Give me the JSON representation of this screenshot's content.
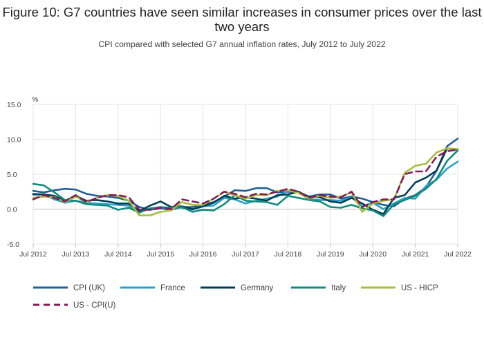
{
  "chart_data": {
    "type": "line",
    "title": "Figure 10: G7 countries have seen similar increases in consumer prices over the last two years",
    "subtitle": "CPI compared with selected G7 annual inflation rates, July 2012 to July 2022",
    "ylabel": "%",
    "xlabel": "",
    "ylim": [
      -5,
      15
    ],
    "yticks": [
      -5,
      0,
      5,
      10,
      15
    ],
    "ytick_labels": [
      "-5.0",
      "0.0",
      "5.0",
      "10.0",
      "15.0"
    ],
    "xlim": [
      2012.5,
      2022.5
    ],
    "xticks": [
      2012.5,
      2013.5,
      2014.5,
      2015.5,
      2016.5,
      2017.5,
      2018.5,
      2019.5,
      2020.5,
      2021.5,
      2022.5
    ],
    "xtick_labels": [
      "Jul 2012",
      "Jul 2013",
      "Jul 2014",
      "Jul 2015",
      "Jul 2016",
      "Jul 2017",
      "Jul 2018",
      "Jul 2019",
      "Jul 2020",
      "Jul 2021",
      "Jul 2022"
    ],
    "grid": true,
    "legend_position": "bottom",
    "series": [
      {
        "name": "CPI (UK)",
        "color": "#206095",
        "dash": "solid",
        "x": [
          2012.5,
          2012.75,
          2013.0,
          2013.25,
          2013.5,
          2013.75,
          2014.0,
          2014.25,
          2014.5,
          2014.75,
          2015.0,
          2015.25,
          2015.5,
          2015.75,
          2016.0,
          2016.25,
          2016.5,
          2016.75,
          2017.0,
          2017.25,
          2017.5,
          2017.75,
          2018.0,
          2018.25,
          2018.5,
          2018.75,
          2019.0,
          2019.25,
          2019.5,
          2019.75,
          2020.0,
          2020.25,
          2020.5,
          2020.75,
          2021.0,
          2021.25,
          2021.5,
          2021.75,
          2022.0,
          2022.25,
          2022.5
        ],
        "y": [
          2.6,
          2.4,
          2.7,
          2.9,
          2.8,
          2.2,
          1.9,
          1.8,
          1.6,
          1.2,
          0.3,
          -0.1,
          0.1,
          -0.1,
          0.3,
          0.3,
          0.6,
          1.0,
          1.8,
          2.7,
          2.6,
          3.0,
          3.0,
          2.4,
          2.5,
          2.4,
          1.8,
          2.1,
          2.1,
          1.5,
          1.8,
          1.5,
          1.0,
          0.6,
          0.4,
          1.5,
          2.0,
          3.1,
          5.5,
          9.0,
          10.1
        ]
      },
      {
        "name": "France",
        "color": "#27a0cc",
        "dash": "solid",
        "x": [
          2012.5,
          2012.75,
          2013.0,
          2013.25,
          2013.5,
          2013.75,
          2014.0,
          2014.25,
          2014.5,
          2014.75,
          2015.0,
          2015.25,
          2015.5,
          2015.75,
          2016.0,
          2016.25,
          2016.5,
          2016.75,
          2017.0,
          2017.25,
          2017.5,
          2017.75,
          2018.0,
          2018.25,
          2018.5,
          2018.75,
          2019.0,
          2019.25,
          2019.5,
          2019.75,
          2020.0,
          2020.25,
          2020.5,
          2020.75,
          2021.0,
          2021.25,
          2021.5,
          2021.75,
          2022.0,
          2022.25,
          2022.5
        ],
        "y": [
          2.2,
          2.1,
          1.4,
          0.9,
          1.2,
          0.9,
          0.8,
          0.7,
          0.6,
          0.5,
          -0.4,
          0.1,
          0.2,
          0.2,
          0.2,
          -0.1,
          0.4,
          0.5,
          1.6,
          1.4,
          0.8,
          1.2,
          1.5,
          1.8,
          2.6,
          2.5,
          1.4,
          1.3,
          1.3,
          1.2,
          1.7,
          0.4,
          0.9,
          0.0,
          0.8,
          1.6,
          1.5,
          3.3,
          4.2,
          5.8,
          6.8
        ]
      },
      {
        "name": "Germany",
        "color": "#003c57",
        "dash": "solid",
        "x": [
          2012.5,
          2012.75,
          2013.0,
          2013.25,
          2013.5,
          2013.75,
          2014.0,
          2014.25,
          2014.5,
          2014.75,
          2015.0,
          2015.25,
          2015.5,
          2015.75,
          2016.0,
          2016.25,
          2016.5,
          2016.75,
          2017.0,
          2017.25,
          2017.5,
          2017.75,
          2018.0,
          2018.25,
          2018.5,
          2018.75,
          2019.0,
          2019.25,
          2019.5,
          2019.75,
          2020.0,
          2020.25,
          2020.5,
          2020.75,
          2021.0,
          2021.25,
          2021.5,
          2021.75,
          2022.0,
          2022.25,
          2022.5
        ],
        "y": [
          2.1,
          2.1,
          1.9,
          1.2,
          1.9,
          1.2,
          1.3,
          1.1,
          0.8,
          0.8,
          -0.3,
          0.5,
          1.1,
          0.3,
          0.4,
          0.0,
          0.4,
          0.9,
          1.9,
          1.5,
          1.7,
          1.5,
          1.2,
          2.0,
          2.1,
          2.5,
          1.7,
          1.7,
          1.1,
          0.9,
          1.6,
          0.8,
          -0.1,
          -0.7,
          1.6,
          2.0,
          3.8,
          4.5,
          5.5,
          8.7,
          8.5
        ]
      },
      {
        "name": "Italy",
        "color": "#118c7b",
        "dash": "solid",
        "x": [
          2012.5,
          2012.75,
          2013.0,
          2013.25,
          2013.5,
          2013.75,
          2014.0,
          2014.25,
          2014.5,
          2014.75,
          2015.0,
          2015.25,
          2015.5,
          2015.75,
          2016.0,
          2016.25,
          2016.5,
          2016.75,
          2017.0,
          2017.25,
          2017.5,
          2017.75,
          2018.0,
          2018.25,
          2018.5,
          2018.75,
          2019.0,
          2019.25,
          2019.5,
          2019.75,
          2020.0,
          2020.25,
          2020.5,
          2020.75,
          2021.0,
          2021.25,
          2021.5,
          2021.75,
          2022.0,
          2022.25,
          2022.5
        ],
        "y": [
          3.6,
          3.4,
          2.4,
          1.3,
          1.2,
          0.7,
          0.6,
          0.5,
          -0.1,
          0.2,
          -0.5,
          0.1,
          0.3,
          0.2,
          0.3,
          -0.4,
          -0.1,
          -0.2,
          0.7,
          2.0,
          1.2,
          1.1,
          1.0,
          0.6,
          1.9,
          1.6,
          1.3,
          1.1,
          0.3,
          0.2,
          0.6,
          0.1,
          -0.2,
          -1.0,
          0.7,
          1.3,
          1.9,
          2.9,
          4.3,
          6.9,
          8.4
        ]
      },
      {
        "name": "US - HICP",
        "color": "#a8bd3a",
        "dash": "solid",
        "x": [
          2012.5,
          2012.75,
          2013.0,
          2013.25,
          2013.5,
          2013.75,
          2014.0,
          2014.25,
          2014.5,
          2014.75,
          2015.0,
          2015.25,
          2015.5,
          2015.75,
          2016.0,
          2016.25,
          2016.5,
          2016.75,
          2017.0,
          2017.25,
          2017.5,
          2017.75,
          2018.0,
          2018.25,
          2018.5,
          2018.75,
          2019.0,
          2019.25,
          2019.5,
          2019.75,
          2020.0,
          2020.25,
          2020.5,
          2020.75,
          2021.0,
          2021.25,
          2021.5,
          2021.75,
          2022.0,
          2022.25,
          2022.5
        ],
        "y": [
          1.6,
          1.8,
          1.7,
          1.0,
          1.8,
          1.0,
          1.6,
          2.0,
          1.9,
          1.2,
          -0.9,
          -0.9,
          -0.4,
          -0.2,
          1.0,
          0.6,
          0.6,
          1.5,
          2.5,
          2.0,
          1.5,
          2.0,
          2.0,
          2.6,
          2.7,
          2.3,
          1.5,
          1.9,
          1.6,
          1.8,
          2.4,
          -0.4,
          0.8,
          1.2,
          1.4,
          5.2,
          6.2,
          6.5,
          8.1,
          8.7,
          8.6
        ]
      },
      {
        "name": "US - CPI(U)",
        "color": "#871a5b",
        "dash": "dashed",
        "x": [
          2012.5,
          2012.75,
          2013.0,
          2013.25,
          2013.5,
          2013.75,
          2014.0,
          2014.25,
          2014.5,
          2014.75,
          2015.0,
          2015.25,
          2015.5,
          2015.75,
          2016.0,
          2016.25,
          2016.5,
          2016.75,
          2017.0,
          2017.25,
          2017.5,
          2017.75,
          2018.0,
          2018.25,
          2018.5,
          2018.75,
          2019.0,
          2019.25,
          2019.5,
          2019.75,
          2020.0,
          2020.25,
          2020.5,
          2020.75,
          2021.0,
          2021.25,
          2021.5,
          2021.75,
          2022.0,
          2022.25,
          2022.5
        ],
        "y": [
          1.4,
          2.0,
          1.6,
          1.1,
          2.0,
          1.0,
          1.6,
          2.0,
          2.0,
          1.7,
          -0.1,
          -0.1,
          0.2,
          0.0,
          1.4,
          1.1,
          0.8,
          1.5,
          2.5,
          2.2,
          1.7,
          2.2,
          2.1,
          2.5,
          2.9,
          2.5,
          1.6,
          2.0,
          1.8,
          1.7,
          2.5,
          0.3,
          1.0,
          1.4,
          1.4,
          5.0,
          5.4,
          5.4,
          7.5,
          8.3,
          8.5
        ]
      }
    ]
  }
}
